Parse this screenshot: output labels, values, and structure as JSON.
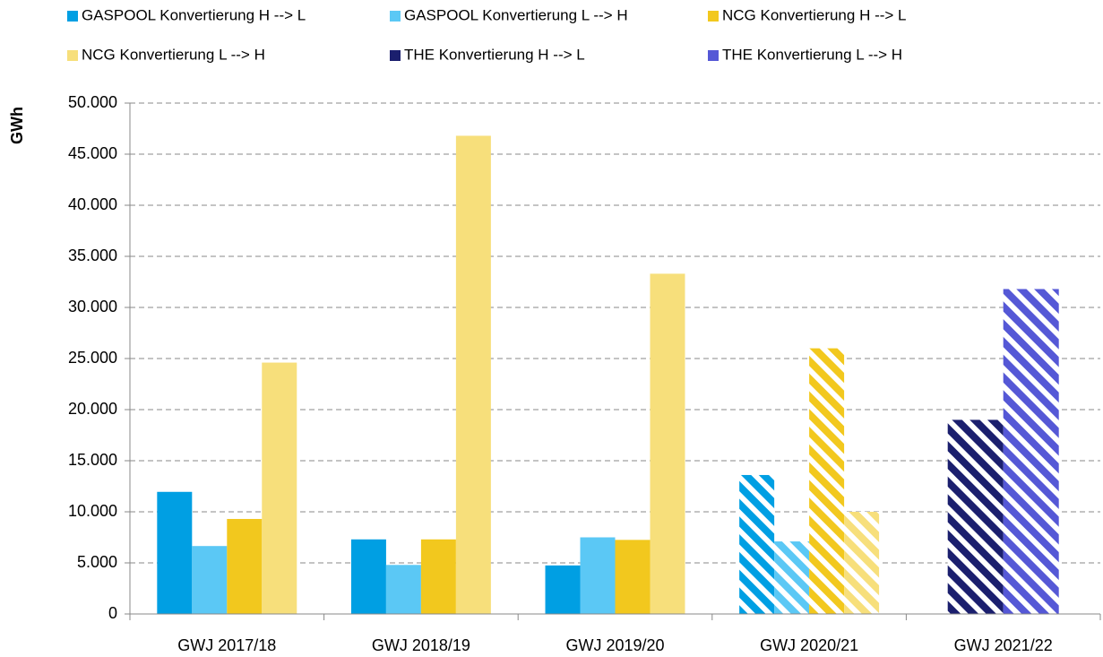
{
  "chart_data": {
    "type": "bar",
    "y_label": "GWh",
    "categories": [
      "GWJ 2017/18",
      "GWJ 2018/19",
      "GWJ 2019/20",
      "GWJ 2020/21",
      "GWJ 2021/22"
    ],
    "hatched": [
      false,
      false,
      false,
      true,
      true
    ],
    "series": [
      {
        "name": "GASPOOL Konvertierung H --> L",
        "color": "#009fe3",
        "values": [
          11950,
          7300,
          4750,
          13600,
          null
        ]
      },
      {
        "name": "GASPOOL Konvertierung L --> H",
        "color": "#5bc8f5",
        "values": [
          6650,
          4800,
          7500,
          7100,
          null
        ]
      },
      {
        "name": "NCG Konvertierung H --> L",
        "color": "#f2c81e",
        "values": [
          9300,
          7300,
          7250,
          26000,
          null
        ]
      },
      {
        "name": "NCG Konvertierung L --> H",
        "color": "#f7df7b",
        "values": [
          24600,
          46800,
          33300,
          10000,
          null
        ]
      },
      {
        "name": "THE Konvertierung H --> L",
        "color": "#1b1f6e",
        "values": [
          null,
          null,
          null,
          null,
          19000
        ]
      },
      {
        "name": "THE Konvertierung L --> H",
        "color": "#5558d6",
        "values": [
          null,
          null,
          null,
          null,
          31800
        ]
      }
    ],
    "ylim": [
      0,
      50000
    ],
    "yticks": [
      0,
      {
        "value": 5000,
        "label": "5.000"
      },
      {
        "value": 10000,
        "label": "10.000"
      },
      {
        "value": 15000,
        "label": "15.000"
      },
      {
        "value": 20000,
        "label": "20.000"
      },
      {
        "value": 25000,
        "label": "25.000"
      },
      {
        "value": 30000,
        "label": "30.000"
      },
      {
        "value": 35000,
        "label": "35.000"
      },
      {
        "value": 40000,
        "label": "40.000"
      },
      {
        "value": 45000,
        "label": "45.000"
      },
      {
        "value": 50000,
        "label": "50.000"
      }
    ],
    "grid": true,
    "legend": "top"
  }
}
